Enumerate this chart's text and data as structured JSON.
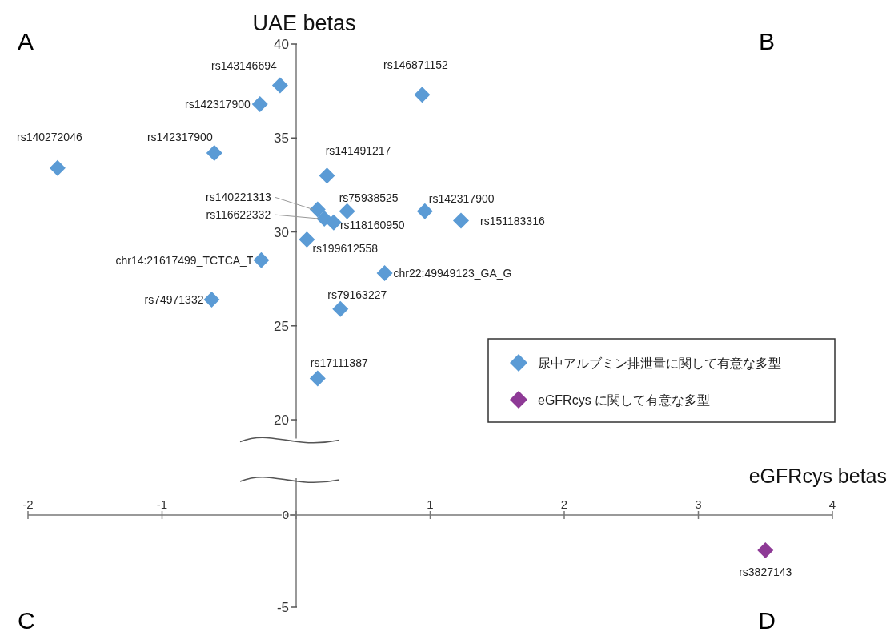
{
  "chart_data": [
    {
      "type": "scatter",
      "ylabel": "UAE betas",
      "annotations": [
        "A",
        "B"
      ],
      "xlim": [
        -2,
        4
      ],
      "ylim": [
        19,
        40
      ],
      "yticks": [
        20,
        25,
        30,
        35,
        40
      ],
      "marker": "diamond",
      "legend": "right",
      "series": [
        {
          "name": "尿中アルブミン排泄量に関して有意な多型",
          "color": "#5b9bd5",
          "x": [
            -0.12,
            0.94,
            -0.27,
            -1.78,
            -0.61,
            0.23,
            0.16,
            0.38,
            0.21,
            0.28,
            0.96,
            1.23,
            0.08,
            -0.26,
            0.66,
            -0.63,
            0.33,
            0.16
          ],
          "values": [
            37.8,
            37.3,
            36.8,
            33.4,
            34.2,
            33.0,
            31.2,
            31.1,
            30.7,
            30.5,
            31.1,
            30.6,
            29.6,
            28.5,
            27.8,
            26.4,
            25.9,
            22.2
          ],
          "value_labels": [
            "rs143146694",
            "rs146871152",
            "rs142317900",
            "rs140272046",
            "rs142317900",
            "rs141491217",
            "rs140221313",
            "rs75938525",
            "rs116622332",
            "rs118160950",
            "rs142317900",
            "rs151183316",
            "rs199612558",
            "chr14:21617499_TCTCA_T",
            "chr22:49949123_GA_G",
            "rs74971332",
            "rs79163227",
            "rs17111387"
          ]
        }
      ]
    },
    {
      "type": "scatter",
      "xlabel": "eGFRcys betas",
      "annotations": [
        "C",
        "D"
      ],
      "xlim": [
        -2,
        4
      ],
      "xticks": [
        -2,
        -1,
        {
          "value": 0,
          "label": null
        },
        1,
        2,
        3,
        4
      ],
      "ylim": [
        -5,
        2
      ],
      "yticks": [
        -5,
        0
      ],
      "marker": "diamond",
      "series": [
        {
          "name": "eGFRcys に関して有意な多型",
          "color": "#8e3a96",
          "x": [
            3.5
          ],
          "values": [
            -1.91
          ],
          "value_labels": [
            "rs3827143"
          ]
        }
      ]
    }
  ]
}
